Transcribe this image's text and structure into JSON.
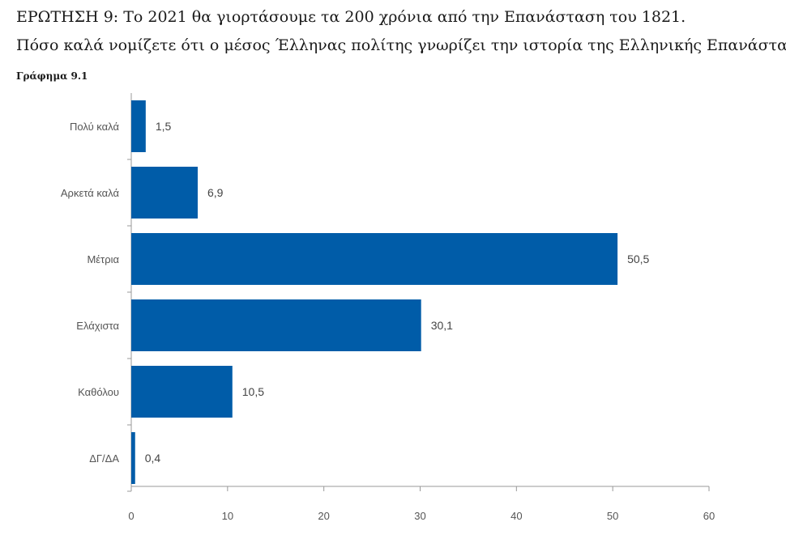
{
  "header": {
    "question_line1": "ΕΡΩΤΗΣΗ 9: Το 2021 θα γιορτάσουμε τα 200 χρόνια από την Επανάσταση του 1821.",
    "question_line2": "Πόσο καλά νομίζετε ότι ο μέσος Έλληνας πολίτης γνωρίζει την ιστορία της Ελληνικής Επανάστασης;",
    "figure_label": "Γράφημα 9.1"
  },
  "chart_data": {
    "type": "bar",
    "orientation": "horizontal",
    "categories": [
      "Πολύ καλά",
      "Αρκετά καλά",
      "Μέτρια",
      "Ελάχιστα",
      "Καθόλου",
      "ΔΓ/ΔΑ"
    ],
    "values": [
      1.5,
      6.9,
      50.5,
      30.1,
      10.5,
      0.4
    ],
    "value_labels": [
      "1,5",
      "6,9",
      "50,5",
      "30,1",
      "10,5",
      "0,4"
    ],
    "xticks": [
      0,
      10,
      20,
      30,
      40,
      50,
      60
    ],
    "xlim": [
      0,
      60
    ],
    "grid": false,
    "bar_color": "#005ca8",
    "xlabel": "",
    "ylabel": ""
  }
}
